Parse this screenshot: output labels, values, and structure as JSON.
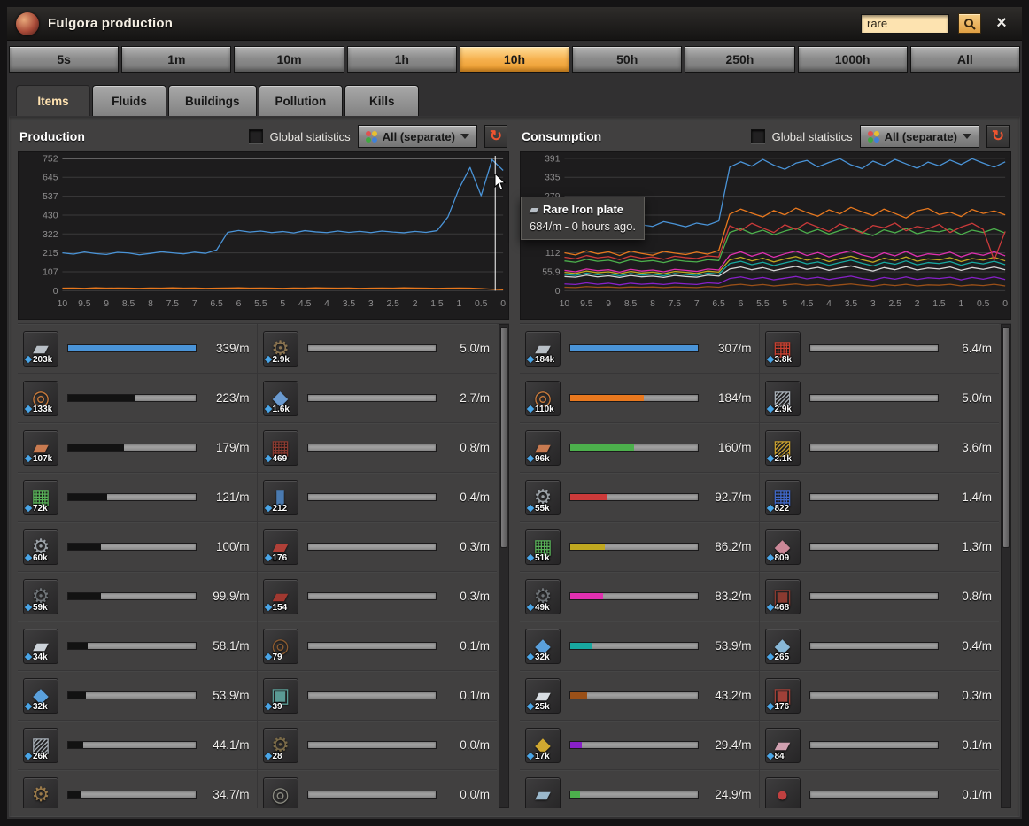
{
  "window": {
    "title": "Fulgora production",
    "search": {
      "value": "rare"
    },
    "icons": {
      "close": "×",
      "refresh": "↻"
    }
  },
  "time_ranges": {
    "options": [
      "5s",
      "1m",
      "10m",
      "1h",
      "10h",
      "50h",
      "250h",
      "1000h",
      "All"
    ],
    "selected": "10h"
  },
  "tabs": {
    "options": [
      "Items",
      "Fluids",
      "Buildings",
      "Pollution",
      "Kills"
    ],
    "active": "Items"
  },
  "tooltip": {
    "title": "Rare Iron plate",
    "line": "684/m - 0 hours ago."
  },
  "panels": [
    {
      "title": "Production",
      "global_label": "Global statistics",
      "filter_label": "All (separate)",
      "items_left": [
        {
          "count": "203k",
          "rate": "339/m",
          "pct": 100,
          "fill": "#4a94d8",
          "glyph": "plate",
          "color": "#b8bfc6"
        },
        {
          "count": "133k",
          "rate": "223/m",
          "pct": 52,
          "fill": "#121212",
          "glyph": "coil",
          "color": "#c87a3c"
        },
        {
          "count": "107k",
          "rate": "179/m",
          "pct": 44,
          "fill": "#121212",
          "glyph": "plate",
          "color": "#c87a50"
        },
        {
          "count": "72k",
          "rate": "121/m",
          "pct": 31,
          "fill": "#121212",
          "glyph": "circuit",
          "color": "#58b058"
        },
        {
          "count": "60k",
          "rate": "100/m",
          "pct": 26,
          "fill": "#121212",
          "glyph": "gear",
          "color": "#9aa0a6"
        },
        {
          "count": "59k",
          "rate": "99.9/m",
          "pct": 26,
          "fill": "#121212",
          "glyph": "gear",
          "color": "#6f7478"
        },
        {
          "count": "34k",
          "rate": "58.1/m",
          "pct": 15,
          "fill": "#121212",
          "glyph": "plate",
          "color": "#ccd2d8"
        },
        {
          "count": "32k",
          "rate": "53.9/m",
          "pct": 14,
          "fill": "#121212",
          "glyph": "chunks",
          "color": "#5aa0dc"
        },
        {
          "count": "26k",
          "rate": "44.1/m",
          "pct": 12,
          "fill": "#121212",
          "glyph": "beams",
          "color": "#a8b0b8"
        },
        {
          "count": "",
          "rate": "34.7/m",
          "pct": 10,
          "fill": "#121212",
          "glyph": "gear",
          "color": "#9a7a4a"
        }
      ],
      "items_right": [
        {
          "count": "2.9k",
          "rate": "5.0/m",
          "pct": 0,
          "fill": "#121212",
          "glyph": "gear",
          "color": "#8a7350"
        },
        {
          "count": "1.6k",
          "rate": "2.7/m",
          "pct": 0,
          "fill": "#121212",
          "glyph": "chunks",
          "color": "#6a9ad0"
        },
        {
          "count": "469",
          "rate": "0.8/m",
          "pct": 0,
          "fill": "#121212",
          "glyph": "circuit",
          "color": "#8a3a30"
        },
        {
          "count": "212",
          "rate": "0.4/m",
          "pct": 0,
          "fill": "#121212",
          "glyph": "barrel",
          "color": "#4a7ab0"
        },
        {
          "count": "176",
          "rate": "0.3/m",
          "pct": 0,
          "fill": "#121212",
          "glyph": "plate",
          "color": "#b04038"
        },
        {
          "count": "154",
          "rate": "0.3/m",
          "pct": 0,
          "fill": "#121212",
          "glyph": "plate",
          "color": "#a03830"
        },
        {
          "count": "79",
          "rate": "0.1/m",
          "pct": 0,
          "fill": "#121212",
          "glyph": "coil",
          "color": "#8a5a30"
        },
        {
          "count": "39",
          "rate": "0.1/m",
          "pct": 0,
          "fill": "#121212",
          "glyph": "machine",
          "color": "#5a9a94"
        },
        {
          "count": "28",
          "rate": "0.0/m",
          "pct": 0,
          "fill": "#121212",
          "glyph": "gear",
          "color": "#7a6a48"
        },
        {
          "count": "",
          "rate": "0.0/m",
          "pct": 0,
          "fill": "#121212",
          "glyph": "coil",
          "color": "#8a8a80"
        }
      ]
    },
    {
      "title": "Consumption",
      "global_label": "Global statistics",
      "filter_label": "All (separate)",
      "items_left": [
        {
          "count": "184k",
          "rate": "307/m",
          "pct": 100,
          "fill": "#4a94d8",
          "glyph": "plate",
          "color": "#b8bfc6"
        },
        {
          "count": "110k",
          "rate": "184/m",
          "pct": 58,
          "fill": "#e8781e",
          "glyph": "coil",
          "color": "#c87a3c"
        },
        {
          "count": "96k",
          "rate": "160/m",
          "pct": 50,
          "fill": "#4cb04c",
          "glyph": "plate",
          "color": "#c87a50"
        },
        {
          "count": "55k",
          "rate": "92.7/m",
          "pct": 29,
          "fill": "#cc3a3a",
          "glyph": "gear",
          "color": "#9aa0a6"
        },
        {
          "count": "51k",
          "rate": "86.2/m",
          "pct": 27,
          "fill": "#c0a820",
          "glyph": "circuit",
          "color": "#58b058"
        },
        {
          "count": "49k",
          "rate": "83.2/m",
          "pct": 26,
          "fill": "#e030b0",
          "glyph": "gear",
          "color": "#6f7478"
        },
        {
          "count": "32k",
          "rate": "53.9/m",
          "pct": 17,
          "fill": "#18a8a0",
          "glyph": "chunks",
          "color": "#5aa0dc"
        },
        {
          "count": "25k",
          "rate": "43.2/m",
          "pct": 13,
          "fill": "#9a5018",
          "glyph": "plate",
          "color": "#d8dde2"
        },
        {
          "count": "17k",
          "rate": "29.4/m",
          "pct": 9,
          "fill": "#8820c8",
          "glyph": "chunks",
          "color": "#d0a830"
        },
        {
          "count": "",
          "rate": "24.9/m",
          "pct": 8,
          "fill": "#4cb04c",
          "glyph": "plate",
          "color": "#9ab8cc"
        }
      ],
      "items_right": [
        {
          "count": "3.8k",
          "rate": "6.4/m",
          "pct": 0,
          "fill": "#121212",
          "glyph": "circuit",
          "color": "#c84030"
        },
        {
          "count": "2.9k",
          "rate": "5.0/m",
          "pct": 0,
          "fill": "#121212",
          "glyph": "beams",
          "color": "#a8b0b8"
        },
        {
          "count": "2.1k",
          "rate": "3.6/m",
          "pct": 0,
          "fill": "#121212",
          "glyph": "beams",
          "color": "#c8a030"
        },
        {
          "count": "822",
          "rate": "1.4/m",
          "pct": 0,
          "fill": "#121212",
          "glyph": "circuit",
          "color": "#4068c8"
        },
        {
          "count": "809",
          "rate": "1.3/m",
          "pct": 0,
          "fill": "#121212",
          "glyph": "chunks",
          "color": "#cc8898"
        },
        {
          "count": "468",
          "rate": "0.8/m",
          "pct": 0,
          "fill": "#121212",
          "glyph": "machine",
          "color": "#8a3a30"
        },
        {
          "count": "265",
          "rate": "0.4/m",
          "pct": 0,
          "fill": "#121212",
          "glyph": "chunks",
          "color": "#88b8d8"
        },
        {
          "count": "176",
          "rate": "0.3/m",
          "pct": 0,
          "fill": "#121212",
          "glyph": "machine",
          "color": "#a04038"
        },
        {
          "count": "84",
          "rate": "0.1/m",
          "pct": 0,
          "fill": "#121212",
          "glyph": "plate",
          "color": "#d0a0b0"
        },
        {
          "count": "",
          "rate": "0.1/m",
          "pct": 0,
          "fill": "#121212",
          "glyph": "capsule",
          "color": "#c04040"
        }
      ]
    }
  ],
  "chart_data": [
    {
      "type": "line",
      "title": "Production",
      "ylim": [
        0,
        752
      ],
      "yticks": [
        "752",
        "645",
        "537",
        "430",
        "322",
        "215",
        "107",
        "0"
      ],
      "xticks": [
        "10",
        "9.5",
        "9",
        "8.5",
        "8",
        "7.5",
        "7",
        "6.5",
        "6",
        "5.5",
        "5",
        "4.5",
        "4",
        "3.5",
        "3",
        "2.5",
        "2",
        "1.5",
        "1",
        "0.5",
        "0"
      ],
      "top_bright": true,
      "cursor": true,
      "grid": true,
      "legend": "none",
      "series": [
        {
          "name": "s-orange",
          "color": "#e8781e",
          "values": [
            14,
            15,
            13,
            16,
            14,
            15,
            14,
            13,
            15,
            14,
            16,
            14,
            15,
            13,
            14,
            15,
            16,
            14,
            15,
            14,
            13,
            15,
            14,
            16,
            15,
            14,
            15,
            13,
            14,
            15,
            14,
            16,
            15,
            14,
            13,
            14,
            15,
            14,
            12,
            8,
            5
          ]
        },
        {
          "name": "Rare Iron plate",
          "color": "#4a94d8",
          "values": [
            215,
            208,
            220,
            211,
            206,
            218,
            214,
            204,
            212,
            221,
            215,
            209,
            219,
            212,
            232,
            331,
            342,
            333,
            339,
            330,
            336,
            328,
            341,
            334,
            330,
            339,
            331,
            337,
            330,
            339,
            333,
            329,
            337,
            331,
            341,
            420,
            580,
            700,
            540,
            745,
            684
          ]
        }
      ]
    },
    {
      "type": "line",
      "title": "Consumption",
      "ylim": [
        0,
        391
      ],
      "yticks": [
        "391",
        "335",
        "279",
        "223",
        "168",
        "112",
        "55.9",
        "0"
      ],
      "xticks": [
        "10",
        "9.5",
        "9",
        "8.5",
        "8",
        "7.5",
        "7",
        "6.5",
        "6",
        "5.5",
        "5",
        "4.5",
        "4",
        "3.5",
        "3",
        "2.5",
        "2",
        "1.5",
        "1",
        "0.5",
        "0"
      ],
      "top_bright": false,
      "cursor": false,
      "grid": true,
      "legend": "none",
      "series": [
        {
          "name": "s-brown",
          "color": "#9a5018",
          "values": [
            10,
            9,
            12,
            10,
            11,
            9,
            11,
            10,
            11,
            9,
            11,
            10,
            9,
            12,
            10,
            16,
            19,
            15,
            18,
            14,
            17,
            20,
            16,
            18,
            14,
            17,
            20,
            16,
            13,
            18,
            15,
            19,
            14,
            17,
            16,
            19,
            14,
            17,
            15,
            19,
            14
          ]
        },
        {
          "name": "s-purple",
          "color": "#8820c8",
          "values": [
            20,
            18,
            23,
            19,
            22,
            17,
            22,
            19,
            21,
            18,
            22,
            20,
            18,
            23,
            21,
            36,
            41,
            34,
            39,
            32,
            37,
            42,
            35,
            40,
            33,
            38,
            43,
            36,
            31,
            39,
            34,
            41,
            33,
            38,
            36,
            40,
            32,
            39,
            34,
            41,
            33
          ]
        },
        {
          "name": "s-white",
          "color": "#d8d8d8",
          "values": [
            42,
            40,
            46,
            41,
            44,
            39,
            45,
            41,
            43,
            39,
            45,
            42,
            40,
            46,
            43,
            64,
            70,
            62,
            68,
            59,
            66,
            72,
            63,
            69,
            60,
            67,
            73,
            65,
            58,
            68,
            62,
            71,
            61,
            67,
            64,
            70,
            60,
            68,
            63,
            70,
            62
          ]
        },
        {
          "name": "s-cyan",
          "color": "#18a8a0",
          "values": [
            48,
            45,
            52,
            47,
            50,
            44,
            51,
            46,
            49,
            44,
            51,
            48,
            45,
            52,
            49,
            80,
            87,
            77,
            84,
            74,
            82,
            89,
            79,
            85,
            75,
            83,
            90,
            81,
            73,
            84,
            78,
            88,
            76,
            83,
            80,
            86,
            75,
            84,
            79,
            87,
            77
          ]
        },
        {
          "name": "s-yellow",
          "color": "#c0a820",
          "values": [
            54,
            51,
            58,
            53,
            56,
            50,
            57,
            52,
            55,
            50,
            57,
            54,
            51,
            58,
            55,
            91,
            99,
            88,
            96,
            85,
            94,
            101,
            90,
            97,
            86,
            95,
            102,
            92,
            84,
            96,
            89,
            100,
            87,
            94,
            91,
            98,
            86,
            95,
            90,
            99,
            88
          ]
        },
        {
          "name": "s-magenta",
          "color": "#e030b0",
          "values": [
            60,
            56,
            64,
            59,
            62,
            55,
            63,
            58,
            61,
            56,
            63,
            60,
            57,
            64,
            61,
            105,
            115,
            102,
            112,
            99,
            109,
            117,
            104,
            113,
            100,
            110,
            118,
            106,
            98,
            112,
            103,
            116,
            101,
            109,
            106,
            114,
            100,
            111,
            105,
            115,
            103
          ]
        },
        {
          "name": "s-green",
          "color": "#4cb04c",
          "values": [
            88,
            84,
            93,
            87,
            90,
            82,
            92,
            86,
            89,
            83,
            91,
            87,
            85,
            92,
            89,
            172,
            183,
            169,
            179,
            165,
            176,
            185,
            170,
            181,
            167,
            178,
            186,
            173,
            163,
            180,
            171,
            184,
            168,
            177,
            174,
            182,
            166,
            179,
            172,
            183,
            170
          ]
        },
        {
          "name": "s-red",
          "color": "#cc3a3a",
          "values": [
            99,
            94,
            104,
            97,
            101,
            92,
            103,
            96,
            100,
            93,
            102,
            98,
            95,
            103,
            100,
            192,
            178,
            199,
            185,
            172,
            195,
            181,
            201,
            188,
            175,
            197,
            184,
            170,
            193,
            186,
            200,
            177,
            190,
            183,
            196,
            172,
            188,
            199,
            181,
            90,
            175
          ]
        },
        {
          "name": "s-orange",
          "color": "#e8781e",
          "values": [
            112,
            106,
            118,
            109,
            115,
            104,
            117,
            110,
            105,
            116,
            111,
            107,
            114,
            108,
            119,
            226,
            241,
            229,
            218,
            237,
            224,
            244,
            231,
            220,
            239,
            227,
            246,
            233,
            222,
            241,
            228,
            215,
            236,
            243,
            225,
            232,
            219,
            240,
            228,
            236,
            224
          ]
        },
        {
          "name": "s-blue",
          "color": "#4a94d8",
          "values": [
            196,
            188,
            205,
            193,
            199,
            186,
            202,
            195,
            190,
            204,
            197,
            189,
            200,
            194,
            206,
            365,
            381,
            368,
            388,
            371,
            359,
            377,
            385,
            366,
            379,
            390,
            372,
            361,
            383,
            370,
            388,
            375,
            362,
            380,
            369,
            386,
            373,
            390,
            377,
            365,
            381
          ]
        }
      ]
    }
  ]
}
